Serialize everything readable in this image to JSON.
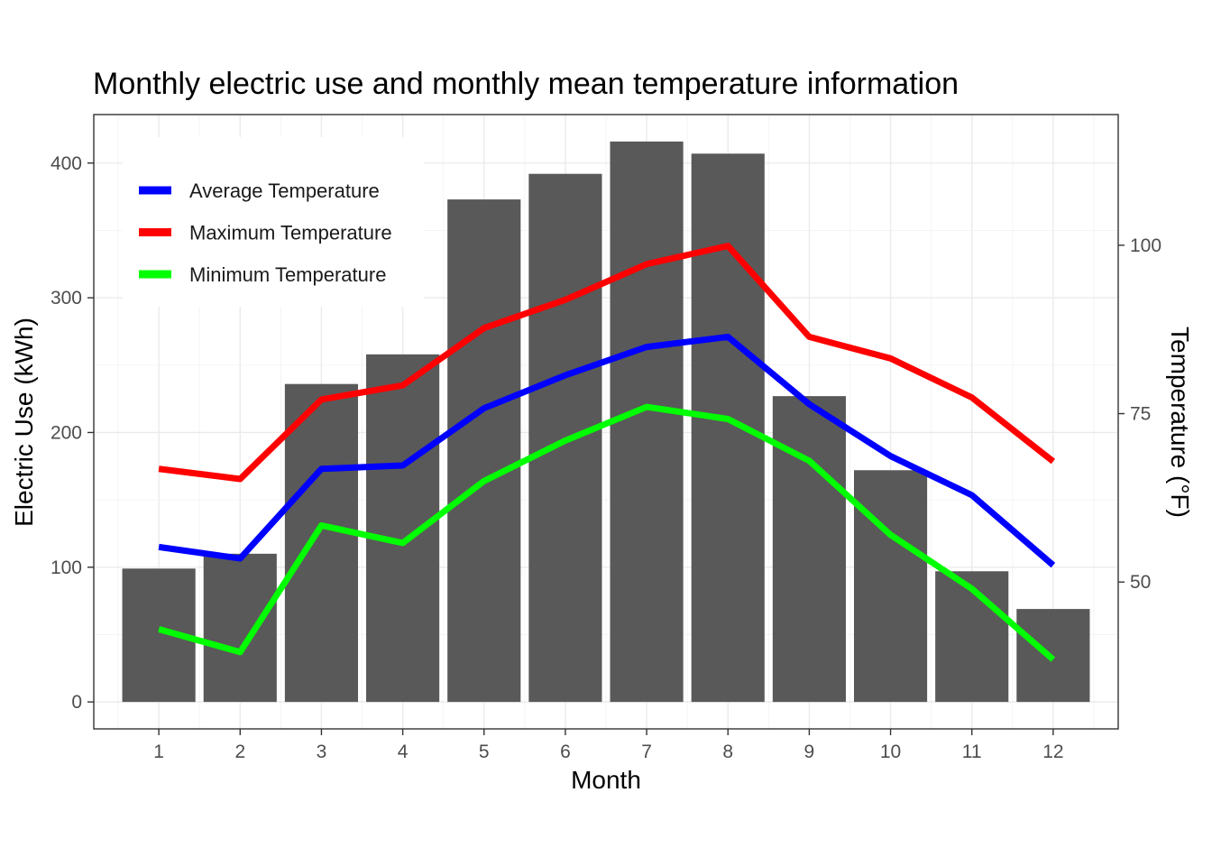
{
  "chart_data": {
    "type": "bar",
    "title": "Monthly electric use and monthly mean temperature information",
    "xlabel": "Month",
    "ylabel": "Electric Use (kWh)",
    "y2label": "Temperature (°F)",
    "categories": [
      "1",
      "2",
      "3",
      "4",
      "5",
      "6",
      "7",
      "8",
      "9",
      "10",
      "11",
      "12"
    ],
    "ylim": [
      -20,
      436
    ],
    "y_ticks": [
      0,
      100,
      200,
      300,
      400
    ],
    "y2lim": [
      28.2,
      119.4
    ],
    "y2_ticks": [
      50,
      75,
      100
    ],
    "grid": true,
    "legend_position": "top-left",
    "bars": {
      "name": "Electric Use",
      "color": "#595959",
      "values": [
        99,
        110,
        236,
        258,
        373,
        392,
        416,
        407,
        227,
        172,
        97,
        69
      ]
    },
    "series": [
      {
        "name": "Average Temperature",
        "color": "#0000ff",
        "axis": "right",
        "values": [
          55.2,
          53.5,
          66.8,
          67.3,
          75.8,
          80.7,
          84.9,
          86.4,
          76.4,
          68.7,
          62.9,
          52.5
        ]
      },
      {
        "name": "Maximum Temperature",
        "color": "#ff0000",
        "axis": "right",
        "values": [
          66.8,
          65.3,
          77.1,
          79.2,
          87.7,
          91.9,
          97.2,
          99.9,
          86.4,
          83.2,
          77.4,
          67.9
        ]
      },
      {
        "name": "Minimum Temperature",
        "color": "#00ff00",
        "axis": "right",
        "values": [
          43.0,
          39.6,
          58.4,
          55.8,
          65.0,
          71.0,
          76.0,
          74.2,
          68.0,
          57.0,
          49.0,
          38.5
        ]
      }
    ]
  }
}
